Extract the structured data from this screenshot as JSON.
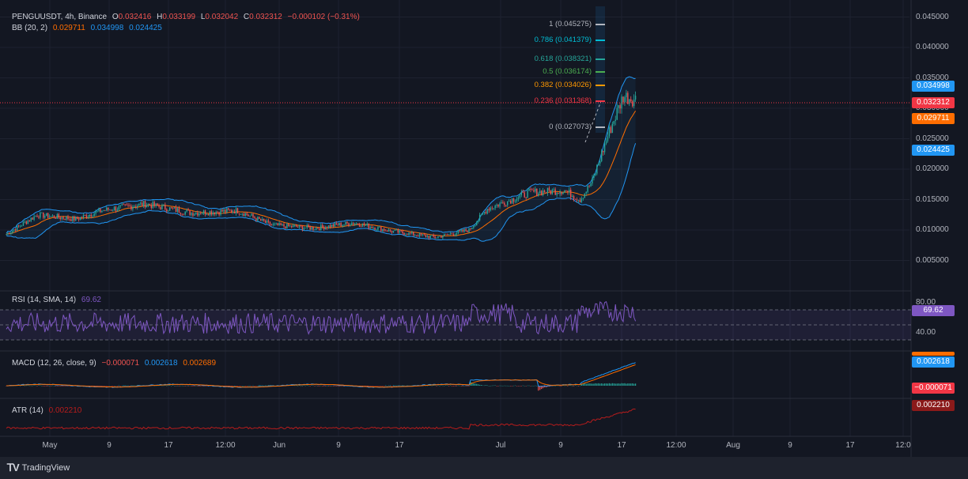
{
  "symbol_line": {
    "symbol": "PENGUUSDT, 4h, Binance",
    "open_label": "O",
    "open": "0.032416",
    "high_label": "H",
    "high": "0.033199",
    "low_label": "L",
    "low": "0.032042",
    "close_label": "C",
    "close": "0.032312",
    "change": "−0.000102 (−0.31%)"
  },
  "bb_line": {
    "label": "BB (20, 2)",
    "basis": "0.029711",
    "upper": "0.034998",
    "lower": "0.024425"
  },
  "rsi_line": {
    "label": "RSI (14, SMA, 14)",
    "value": "69.62"
  },
  "macd_line": {
    "label": "MACD (12, 26, close, 9)",
    "hist": "−0.000071",
    "macd": "0.002618",
    "signal": "0.002689"
  },
  "atr_line": {
    "label": "ATR (14)",
    "value": "0.002210"
  },
  "price_axis": {
    "ticks": [
      "0.045000",
      "0.040000",
      "0.035000",
      "0.030000",
      "0.025000",
      "0.020000",
      "0.015000",
      "0.010000",
      "0.005000"
    ]
  },
  "rsi_axis": {
    "ticks": [
      "80.00",
      "40.00"
    ]
  },
  "time_axis": {
    "labels": [
      "May",
      "9",
      "17",
      "12:00",
      "Jun",
      "9",
      "17",
      "Jul",
      "9",
      "17",
      "12:00",
      "Aug",
      "9",
      "17",
      "12:0"
    ]
  },
  "badges": {
    "bb_upper": "0.034998",
    "last_price": "0.032312",
    "bb_basis": "0.029711",
    "bb_lower": "0.024425",
    "rsi": "69.62",
    "macd": "0.002618",
    "macd_hist": "−0.000071",
    "atr": "0.002210"
  },
  "fib_levels": [
    {
      "label": "1 (0.045275)",
      "color": "#b2b5be"
    },
    {
      "label": "0.786 (0.041379)",
      "color": "#00bcd4"
    },
    {
      "label": "0.618 (0.038321)",
      "color": "#26a69a"
    },
    {
      "label": "0.5 (0.036174)",
      "color": "#4caf50"
    },
    {
      "label": "0.382 (0.034026)",
      "color": "#ff9800"
    },
    {
      "label": "0.236 (0.031368)",
      "color": "#f23645"
    },
    {
      "label": "0 (0.027073)",
      "color": "#b2b5be"
    }
  ],
  "colors": {
    "up": "#26a69a",
    "down": "#ef5350",
    "bb_band": "#2196f3",
    "bb_basis": "#ff6d00",
    "rsi": "#7e57c2",
    "macd": "#2196f3",
    "signal": "#ff6d00",
    "atr": "#b71c1c"
  },
  "brand": "TradingView"
}
